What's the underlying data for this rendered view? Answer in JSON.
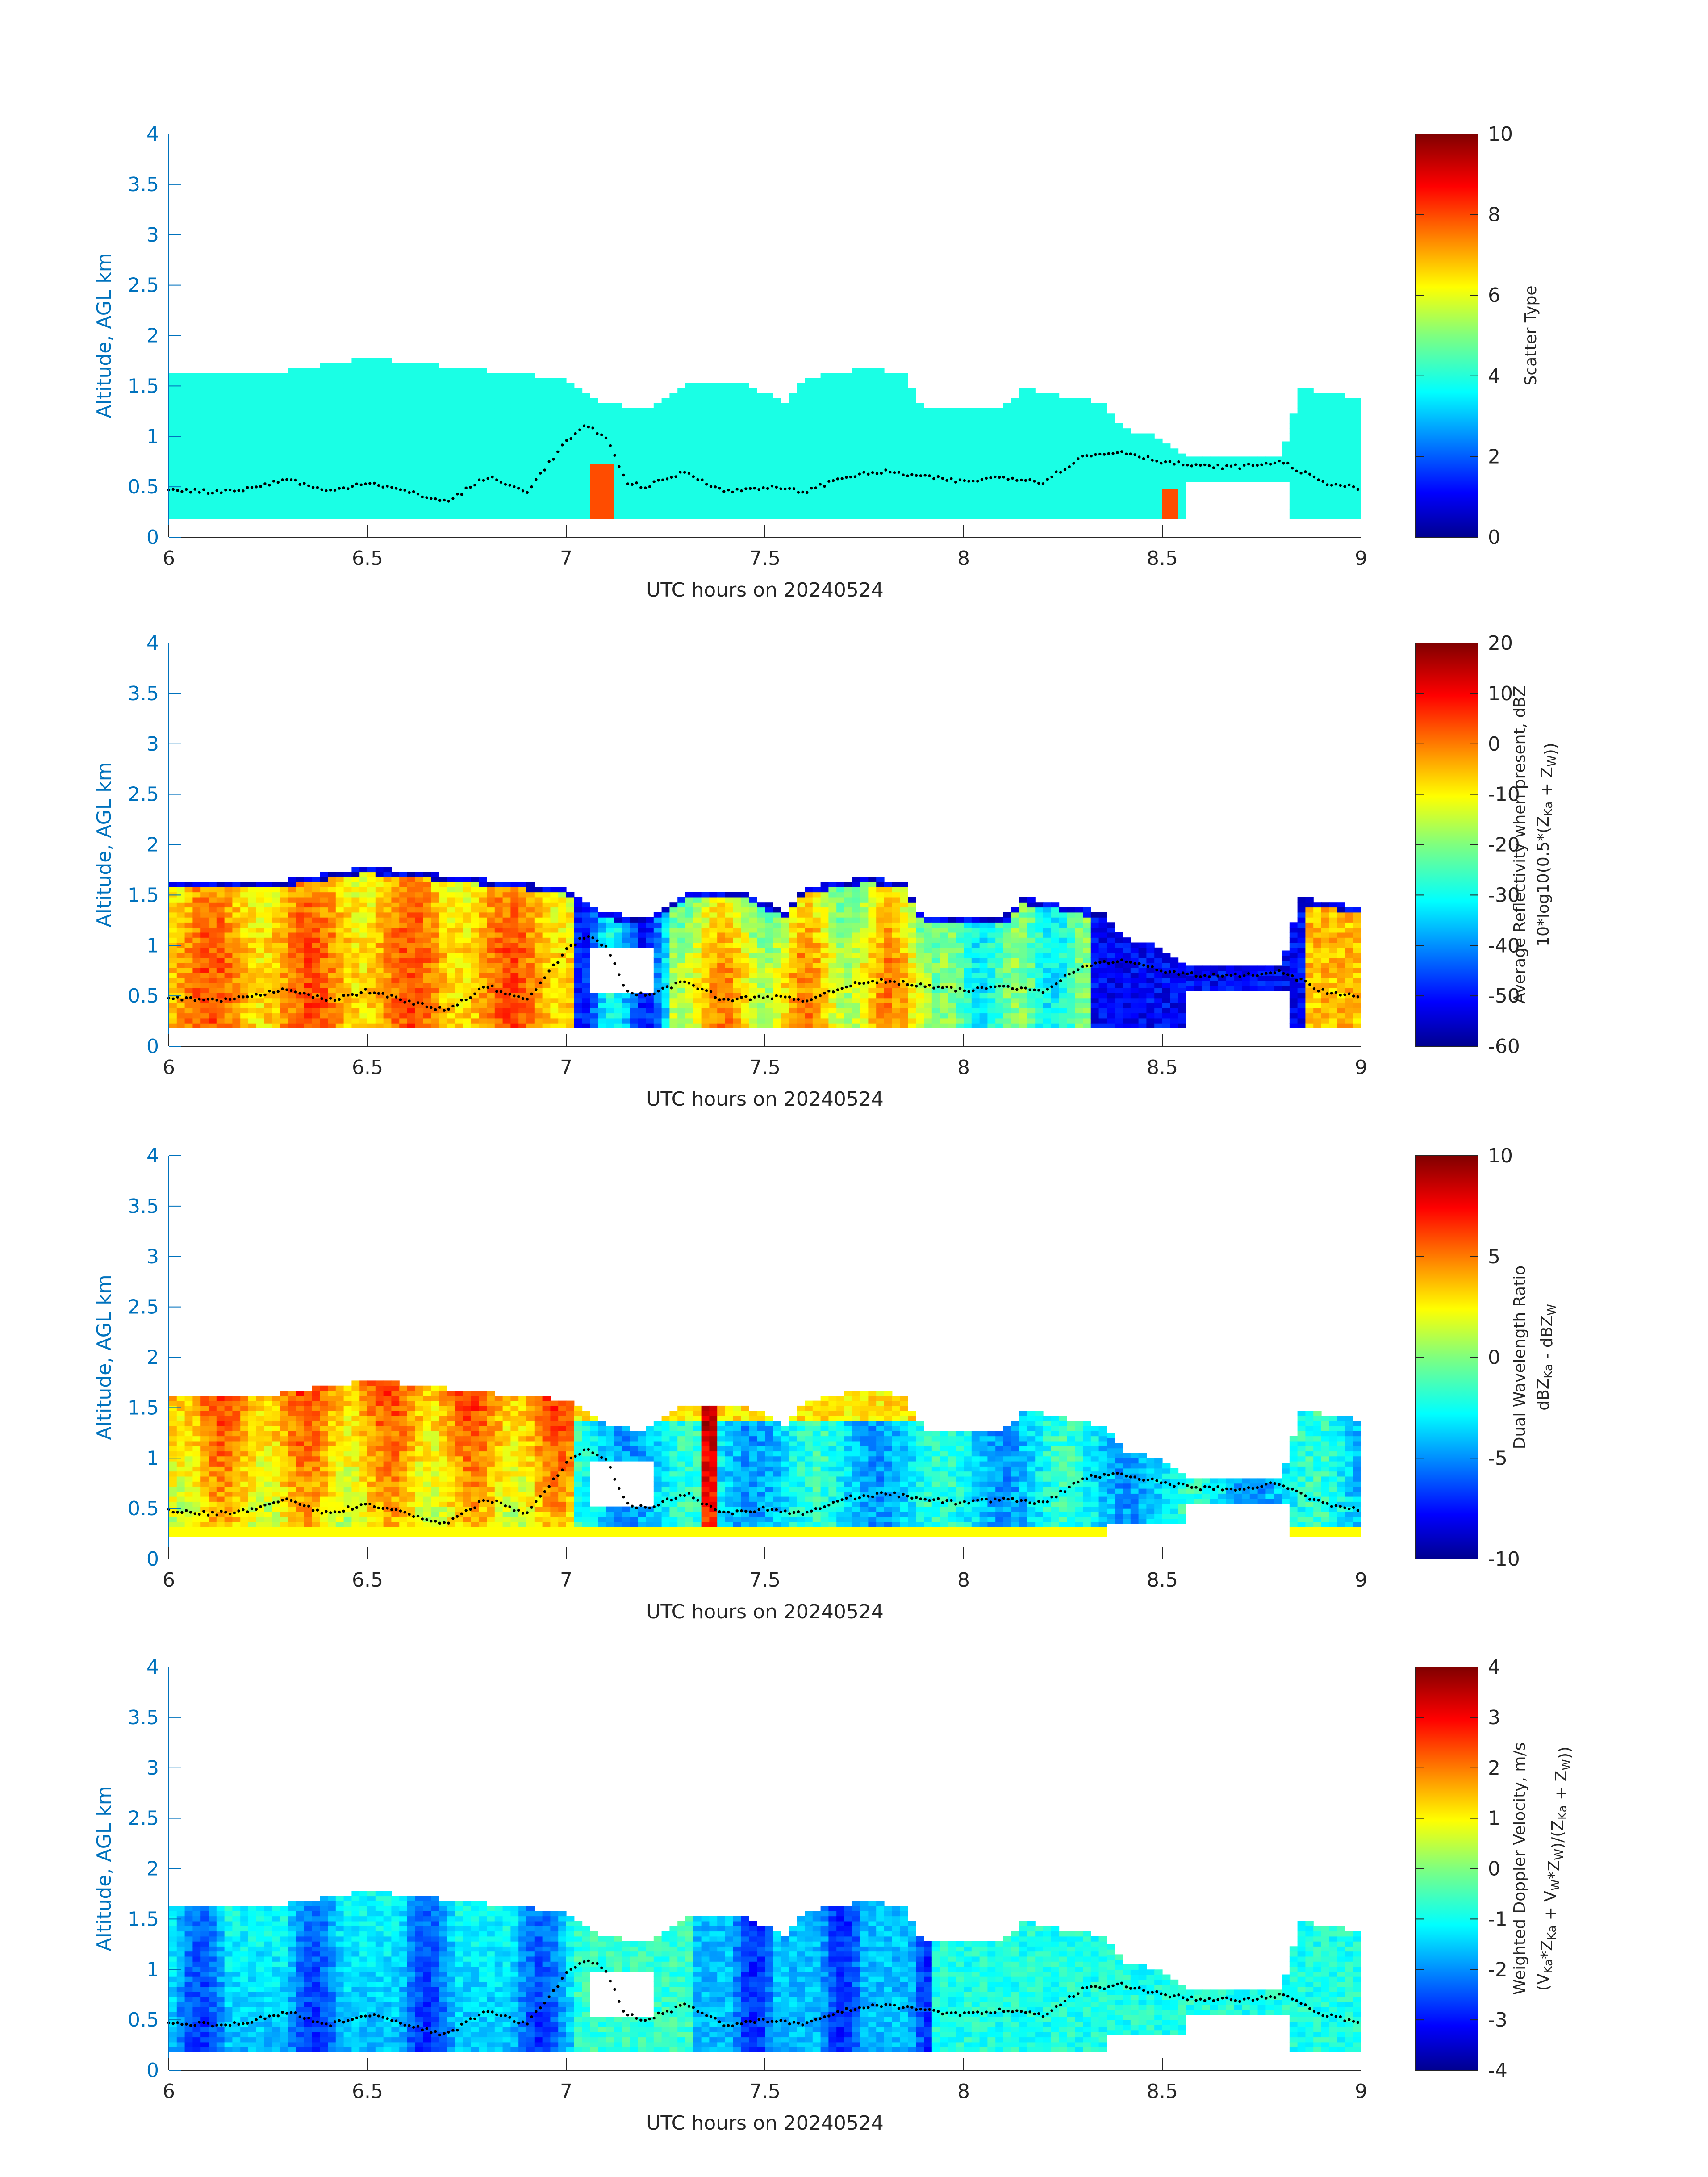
{
  "figure": {
    "date": "20240524"
  },
  "colors": {
    "axis_left": "#0072bd",
    "axis_text": "#262626",
    "tops_marker": "#000000"
  },
  "chart_data": [
    {
      "type": "heatmap",
      "xlabel": "UTC hours on 20240524",
      "ylabel": "Altitude, AGL km",
      "xlim": [
        6,
        9
      ],
      "ylim": [
        0,
        4
      ],
      "xticks": [
        "6",
        "6.5",
        "7",
        "7.5",
        "8",
        "8.5",
        "9"
      ],
      "yticks": [
        "0",
        "0.5",
        "1",
        "1.5",
        "2",
        "2.5",
        "3",
        "3.5",
        "4"
      ],
      "colorbar": {
        "label_lines": [
          "Scatter Type"
        ],
        "range": [
          0,
          10
        ],
        "ticks": [
          "0",
          "2",
          "4",
          "6",
          "8",
          "10"
        ],
        "colormap": "jet"
      },
      "field": "scatter_type",
      "approx_typical_value": 4,
      "secondary_value": 8
    },
    {
      "type": "heatmap",
      "xlabel": "UTC hours on 20240524",
      "ylabel": "Altitude, AGL km",
      "xlim": [
        6,
        9
      ],
      "ylim": [
        0,
        4
      ],
      "xticks": [
        "6",
        "6.5",
        "7",
        "7.5",
        "8",
        "8.5",
        "9"
      ],
      "yticks": [
        "0",
        "0.5",
        "1",
        "1.5",
        "2",
        "2.5",
        "3",
        "3.5",
        "4"
      ],
      "colorbar": {
        "label_lines": [
          "Average Reflectivity when present, dBZ",
          "10*log10(0.5*(Z_Ka + Z_W))"
        ],
        "range": [
          -60,
          20
        ],
        "ticks": [
          "-60",
          "-50",
          "-40",
          "-30",
          "-20",
          "-10",
          "0",
          "10",
          "20"
        ],
        "colormap": "jet"
      },
      "field": "reflectivity_dbz"
    },
    {
      "type": "heatmap",
      "xlabel": "UTC hours on 20240524",
      "ylabel": "Altitude, AGL km",
      "xlim": [
        6,
        9
      ],
      "ylim": [
        0,
        4
      ],
      "xticks": [
        "6",
        "6.5",
        "7",
        "7.5",
        "8",
        "8.5",
        "9"
      ],
      "yticks": [
        "0",
        "0.5",
        "1",
        "1.5",
        "2",
        "2.5",
        "3",
        "3.5",
        "4"
      ],
      "colorbar": {
        "label_lines": [
          "Dual Wavelength Ratio",
          "dBZ_Ka - dBZ_W"
        ],
        "range": [
          -10,
          10
        ],
        "ticks": [
          "-10",
          "-5",
          "0",
          "5",
          "10"
        ],
        "colormap": "jet"
      },
      "field": "dual_wavelength_ratio"
    },
    {
      "type": "heatmap",
      "xlabel": "UTC hours on 20240524",
      "ylabel": "Altitude, AGL km",
      "xlim": [
        6,
        9
      ],
      "ylim": [
        0,
        4
      ],
      "xticks": [
        "6",
        "6.5",
        "7",
        "7.5",
        "8",
        "8.5",
        "9"
      ],
      "yticks": [
        "0",
        "0.5",
        "1",
        "1.5",
        "2",
        "2.5",
        "3",
        "3.5",
        "4"
      ],
      "colorbar": {
        "label_lines": [
          "Weighted Doppler Velocity, m/s",
          "(V_Ka*Z_Ka + V_W*Z_W)/(Z_Ka + Z_W))"
        ],
        "range": [
          -4,
          4
        ],
        "ticks": [
          "-4",
          "-3",
          "-2",
          "-1",
          "0",
          "1",
          "2",
          "3",
          "4"
        ],
        "colormap": "jet"
      },
      "field": "doppler_velocity"
    }
  ],
  "cloud_top_profile_km": {
    "hours": [
      6.0,
      6.25,
      6.5,
      6.75,
      7.0,
      7.1,
      7.2,
      7.3,
      7.45,
      7.55,
      7.6,
      7.75,
      7.85,
      7.9,
      8.1,
      8.15,
      8.35,
      8.4,
      8.5,
      8.55,
      8.6,
      8.7,
      8.8,
      8.85,
      9.0
    ],
    "tops": [
      1.62,
      1.6,
      1.75,
      1.65,
      1.55,
      1.3,
      1.25,
      1.5,
      1.5,
      1.3,
      1.55,
      1.65,
      1.6,
      1.25,
      1.25,
      1.45,
      1.3,
      1.05,
      0.95,
      0.8,
      0.8,
      0.8,
      0.8,
      1.45,
      1.35
    ]
  },
  "boundary_layer_dots_km": {
    "hours": [
      6.0,
      6.1,
      6.2,
      6.3,
      6.4,
      6.5,
      6.6,
      6.7,
      6.8,
      6.9,
      7.0,
      7.05,
      7.1,
      7.15,
      7.2,
      7.3,
      7.4,
      7.5,
      7.6,
      7.7,
      7.8,
      7.9,
      8.0,
      8.1,
      8.2,
      8.3,
      8.4,
      8.5,
      8.6,
      8.7,
      8.8,
      8.9,
      9.0
    ],
    "values": [
      0.48,
      0.45,
      0.48,
      0.58,
      0.45,
      0.55,
      0.45,
      0.35,
      0.6,
      0.45,
      0.95,
      1.1,
      1.0,
      0.55,
      0.5,
      0.65,
      0.45,
      0.5,
      0.45,
      0.6,
      0.65,
      0.6,
      0.55,
      0.6,
      0.55,
      0.8,
      0.85,
      0.75,
      0.7,
      0.7,
      0.75,
      0.55,
      0.48
    ]
  }
}
